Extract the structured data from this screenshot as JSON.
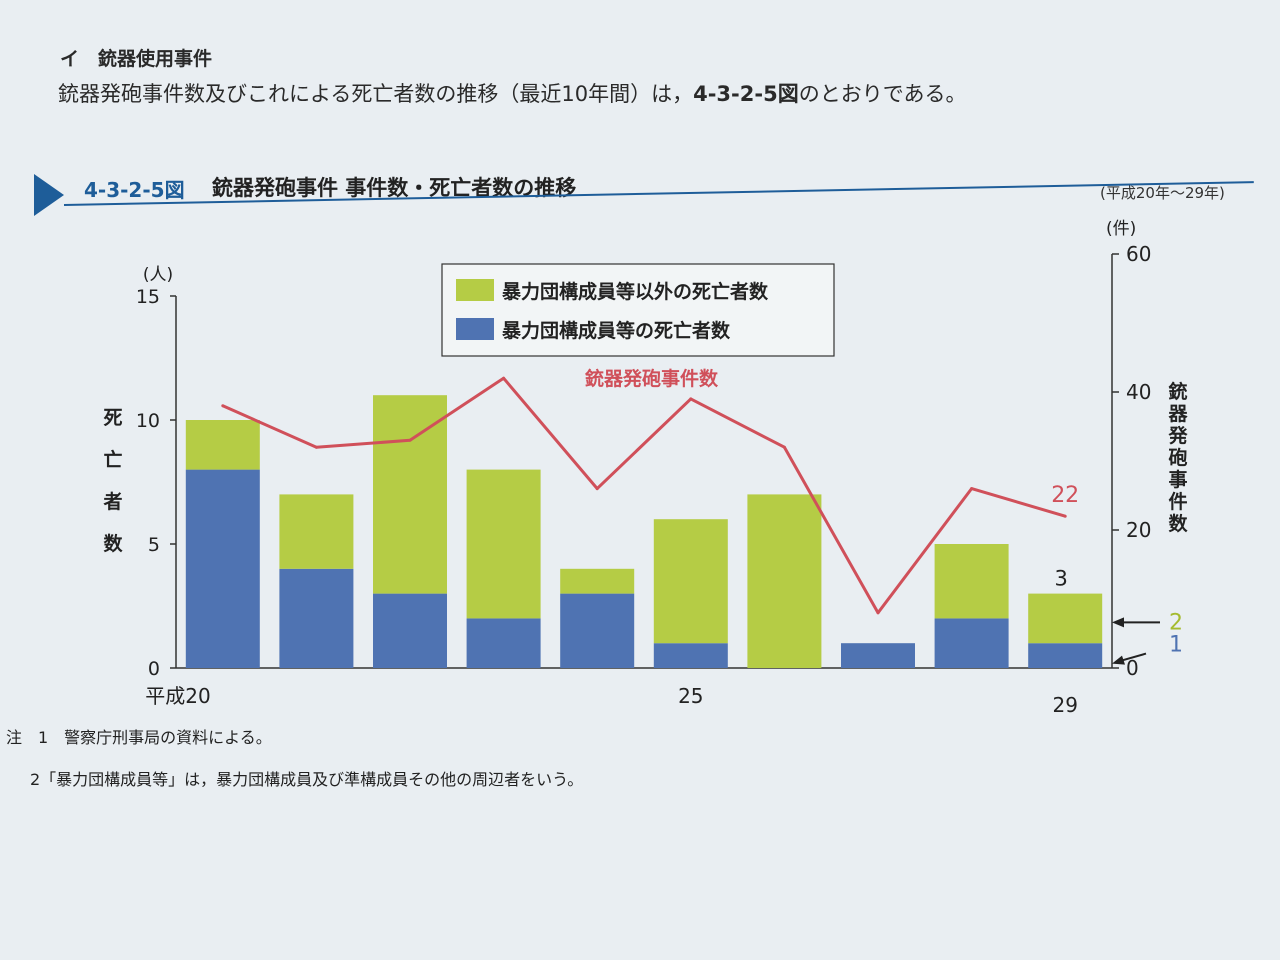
{
  "section": {
    "heading": "イ　銃器使用事件",
    "intro_prefix": "銃器発砲事件数及びこれによる死亡者数の推移（最近10年間）は，",
    "intro_ref": "4-3-2-5図",
    "intro_suffix": "のとおりである。"
  },
  "figure": {
    "number": "4-3-2-5図",
    "title": "銃器発砲事件 事件数・死亡者数の推移",
    "period": "(平成20年〜29年)"
  },
  "notes": [
    "注　1　警察庁刑事局の資料による。",
    "2「暴力団構成員等」は，暴力団構成員及び準構成員その他の周辺者をいう。"
  ],
  "colors": {
    "other_deaths": "#b5cc45",
    "gang_deaths": "#4f73b2",
    "incidents_line": "#d0505a",
    "accent_blue": "#1e5d99"
  },
  "chart_data": {
    "type": "bar",
    "categories": [
      "平成20",
      "",
      "",
      "",
      "",
      "25",
      "",
      "",
      "",
      "29"
    ],
    "series": [
      {
        "name": "暴力団構成員等の死亡者数",
        "kind": "bar",
        "axis": "left",
        "values": [
          8,
          4,
          3,
          2,
          3,
          1,
          0,
          1,
          2,
          1
        ]
      },
      {
        "name": "暴力団構成員等以外の死亡者数",
        "kind": "bar",
        "axis": "left",
        "values": [
          2,
          3,
          8,
          6,
          1,
          5,
          7,
          0,
          3,
          2
        ]
      },
      {
        "name": "銃器発砲事件数",
        "kind": "line",
        "axis": "right",
        "values": [
          38,
          32,
          33,
          42,
          26,
          39,
          32,
          8,
          26,
          22
        ]
      }
    ],
    "left_axis": {
      "label": "死亡者数",
      "unit": "(人)",
      "ylim": [
        0,
        15
      ],
      "ticks": [
        0,
        5,
        10,
        15
      ]
    },
    "right_axis": {
      "label": "銃器発砲事件数",
      "unit": "(件)",
      "ylim": [
        0,
        60
      ],
      "ticks": [
        0,
        20,
        40,
        60
      ]
    },
    "annotations": {
      "last_incidents": "22",
      "last_total": "3",
      "last_other": "2",
      "last_gang": "1"
    },
    "legend": "top-center",
    "grid": false
  }
}
